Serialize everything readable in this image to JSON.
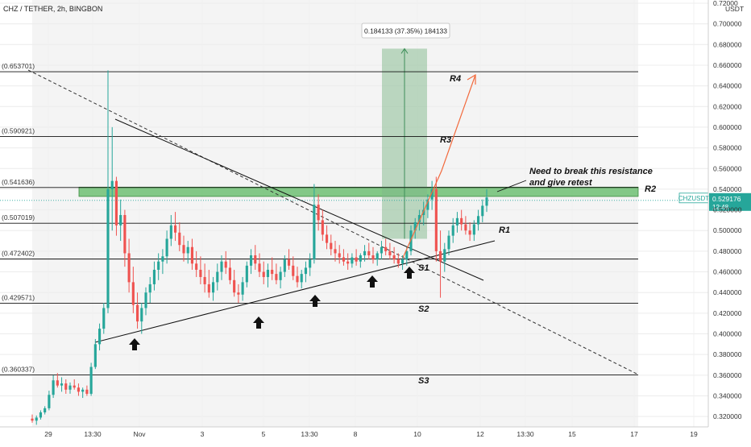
{
  "header": {
    "title": "CHZ / TETHER, 2h, BINGBON"
  },
  "chart_data": {
    "type": "candlestick",
    "symbol": "CHZUSDT",
    "price_axis_unit": "USDT",
    "ylim": [
      0.31,
      0.72
    ],
    "y_ticks": [
      "0.320000",
      "0.340000",
      "0.360000",
      "0.380000",
      "0.400000",
      "0.420000",
      "0.440000",
      "0.460000",
      "0.480000",
      "0.500000",
      "0.520000",
      "0.540000",
      "0.560000",
      "0.580000",
      "0.600000",
      "0.620000",
      "0.640000",
      "0.660000",
      "0.680000",
      "0.700000",
      "0.72000"
    ],
    "x_ticks": [
      "29",
      "13:30",
      "Nov",
      "3",
      "5",
      "13:30",
      "8",
      "10",
      "12",
      "13:30",
      "15",
      "17",
      "19"
    ],
    "levels": [
      {
        "label": "(0.653701)",
        "value": 0.653701,
        "name": "R4"
      },
      {
        "label": "(0.590921)",
        "value": 0.590921,
        "name": "R3"
      },
      {
        "label": "(0.541636)",
        "value": 0.541636,
        "name": "R2"
      },
      {
        "label": "(0.507019)",
        "value": 0.507019,
        "name": "R1"
      },
      {
        "label": "(0.472402)",
        "value": 0.472402,
        "name": "S1"
      },
      {
        "label": "(0.429571)",
        "value": 0.429571,
        "name": "S2"
      },
      {
        "label": "(0.360337)",
        "value": 0.360337,
        "name": "S3"
      }
    ],
    "resistance_zone": [
      0.533,
      0.542
    ],
    "price_range_label": "0.184133 (37.35%) 184133",
    "price_range": [
      0.492,
      0.676
    ],
    "annotation": [
      "Need to break this resistance",
      "and give retest"
    ],
    "current_price": {
      "symbol": "CHZUSDT",
      "value": "0.529176",
      "countdown": "12:48"
    },
    "candles": [
      [
        0.318,
        0.322,
        0.314,
        0.316
      ],
      [
        0.316,
        0.321,
        0.312,
        0.319
      ],
      [
        0.319,
        0.326,
        0.317,
        0.324
      ],
      [
        0.324,
        0.33,
        0.322,
        0.328
      ],
      [
        0.328,
        0.345,
        0.326,
        0.341
      ],
      [
        0.341,
        0.36,
        0.338,
        0.355
      ],
      [
        0.355,
        0.362,
        0.348,
        0.35
      ],
      [
        0.35,
        0.358,
        0.344,
        0.352
      ],
      [
        0.352,
        0.356,
        0.342,
        0.346
      ],
      [
        0.346,
        0.353,
        0.342,
        0.35
      ],
      [
        0.35,
        0.356,
        0.346,
        0.348
      ],
      [
        0.348,
        0.352,
        0.34,
        0.344
      ],
      [
        0.344,
        0.348,
        0.338,
        0.346
      ],
      [
        0.346,
        0.35,
        0.34,
        0.342
      ],
      [
        0.342,
        0.372,
        0.34,
        0.368
      ],
      [
        0.368,
        0.395,
        0.366,
        0.39
      ],
      [
        0.39,
        0.41,
        0.384,
        0.405
      ],
      [
        0.405,
        0.43,
        0.4,
        0.425
      ],
      [
        0.425,
        0.655,
        0.42,
        0.54
      ],
      [
        0.54,
        0.6,
        0.5,
        0.548
      ],
      [
        0.548,
        0.552,
        0.495,
        0.505
      ],
      [
        0.505,
        0.53,
        0.49,
        0.515
      ],
      [
        0.515,
        0.52,
        0.465,
        0.478
      ],
      [
        0.478,
        0.492,
        0.44,
        0.45
      ],
      [
        0.45,
        0.465,
        0.42,
        0.428
      ],
      [
        0.428,
        0.44,
        0.405,
        0.412
      ],
      [
        0.412,
        0.43,
        0.4,
        0.425
      ],
      [
        0.425,
        0.445,
        0.418,
        0.44
      ],
      [
        0.44,
        0.455,
        0.43,
        0.448
      ],
      [
        0.448,
        0.47,
        0.442,
        0.462
      ],
      [
        0.462,
        0.478,
        0.452,
        0.47
      ],
      [
        0.47,
        0.482,
        0.458,
        0.475
      ],
      [
        0.475,
        0.5,
        0.468,
        0.492
      ],
      [
        0.492,
        0.515,
        0.485,
        0.505
      ],
      [
        0.505,
        0.518,
        0.49,
        0.498
      ],
      [
        0.498,
        0.508,
        0.48,
        0.486
      ],
      [
        0.486,
        0.495,
        0.47,
        0.478
      ],
      [
        0.478,
        0.49,
        0.468,
        0.484
      ],
      [
        0.484,
        0.492,
        0.462,
        0.468
      ],
      [
        0.468,
        0.48,
        0.455,
        0.462
      ],
      [
        0.462,
        0.475,
        0.448,
        0.455
      ],
      [
        0.455,
        0.468,
        0.44,
        0.448
      ],
      [
        0.448,
        0.462,
        0.435,
        0.44
      ],
      [
        0.44,
        0.455,
        0.432,
        0.45
      ],
      [
        0.45,
        0.468,
        0.442,
        0.46
      ],
      [
        0.46,
        0.476,
        0.452,
        0.47
      ],
      [
        0.47,
        0.48,
        0.458,
        0.464
      ],
      [
        0.464,
        0.472,
        0.448,
        0.452
      ],
      [
        0.452,
        0.462,
        0.436,
        0.44
      ],
      [
        0.44,
        0.448,
        0.43,
        0.438
      ],
      [
        0.438,
        0.455,
        0.432,
        0.45
      ],
      [
        0.45,
        0.47,
        0.445,
        0.466
      ],
      [
        0.466,
        0.482,
        0.458,
        0.476
      ],
      [
        0.476,
        0.486,
        0.462,
        0.468
      ],
      [
        0.468,
        0.478,
        0.455,
        0.46
      ],
      [
        0.46,
        0.47,
        0.448,
        0.455
      ],
      [
        0.455,
        0.468,
        0.445,
        0.462
      ],
      [
        0.462,
        0.474,
        0.452,
        0.458
      ],
      [
        0.458,
        0.468,
        0.448,
        0.452
      ],
      [
        0.452,
        0.465,
        0.444,
        0.46
      ],
      [
        0.46,
        0.476,
        0.455,
        0.472
      ],
      [
        0.472,
        0.482,
        0.462,
        0.466
      ],
      [
        0.466,
        0.475,
        0.452,
        0.456
      ],
      [
        0.456,
        0.465,
        0.445,
        0.45
      ],
      [
        0.45,
        0.462,
        0.444,
        0.458
      ],
      [
        0.458,
        0.47,
        0.45,
        0.464
      ],
      [
        0.464,
        0.478,
        0.456,
        0.472
      ],
      [
        0.472,
        0.545,
        0.468,
        0.525
      ],
      [
        0.525,
        0.535,
        0.5,
        0.51
      ],
      [
        0.51,
        0.52,
        0.49,
        0.496
      ],
      [
        0.496,
        0.505,
        0.482,
        0.488
      ],
      [
        0.488,
        0.496,
        0.476,
        0.482
      ],
      [
        0.482,
        0.49,
        0.47,
        0.478
      ],
      [
        0.478,
        0.486,
        0.468,
        0.474
      ],
      [
        0.474,
        0.482,
        0.466,
        0.47
      ],
      [
        0.47,
        0.478,
        0.462,
        0.468
      ],
      [
        0.468,
        0.478,
        0.464,
        0.474
      ],
      [
        0.474,
        0.482,
        0.466,
        0.47
      ],
      [
        0.47,
        0.478,
        0.464,
        0.476
      ],
      [
        0.476,
        0.486,
        0.47,
        0.48
      ],
      [
        0.48,
        0.488,
        0.472,
        0.476
      ],
      [
        0.476,
        0.484,
        0.468,
        0.472
      ],
      [
        0.472,
        0.48,
        0.466,
        0.478
      ],
      [
        0.478,
        0.49,
        0.472,
        0.484
      ],
      [
        0.484,
        0.492,
        0.476,
        0.48
      ],
      [
        0.48,
        0.488,
        0.472,
        0.476
      ],
      [
        0.476,
        0.484,
        0.468,
        0.472
      ],
      [
        0.472,
        0.478,
        0.464,
        0.468
      ],
      [
        0.468,
        0.476,
        0.462,
        0.472
      ],
      [
        0.472,
        0.484,
        0.466,
        0.48
      ],
      [
        0.48,
        0.505,
        0.476,
        0.5
      ],
      [
        0.5,
        0.512,
        0.492,
        0.508
      ],
      [
        0.508,
        0.52,
        0.5,
        0.515
      ],
      [
        0.515,
        0.528,
        0.505,
        0.52
      ],
      [
        0.52,
        0.535,
        0.512,
        0.53
      ],
      [
        0.53,
        0.548,
        0.52,
        0.54
      ],
      [
        0.54,
        0.552,
        0.47,
        0.48
      ],
      [
        0.48,
        0.5,
        0.435,
        0.47
      ],
      [
        0.47,
        0.488,
        0.46,
        0.482
      ],
      [
        0.482,
        0.5,
        0.476,
        0.495
      ],
      [
        0.495,
        0.512,
        0.488,
        0.505
      ],
      [
        0.505,
        0.518,
        0.498,
        0.512
      ],
      [
        0.512,
        0.52,
        0.5,
        0.506
      ],
      [
        0.506,
        0.514,
        0.496,
        0.5
      ],
      [
        0.5,
        0.508,
        0.49,
        0.496
      ],
      [
        0.496,
        0.51,
        0.49,
        0.506
      ],
      [
        0.506,
        0.52,
        0.5,
        0.514
      ],
      [
        0.514,
        0.53,
        0.508,
        0.524
      ],
      [
        0.524,
        0.54,
        0.518,
        0.532
      ]
    ]
  }
}
